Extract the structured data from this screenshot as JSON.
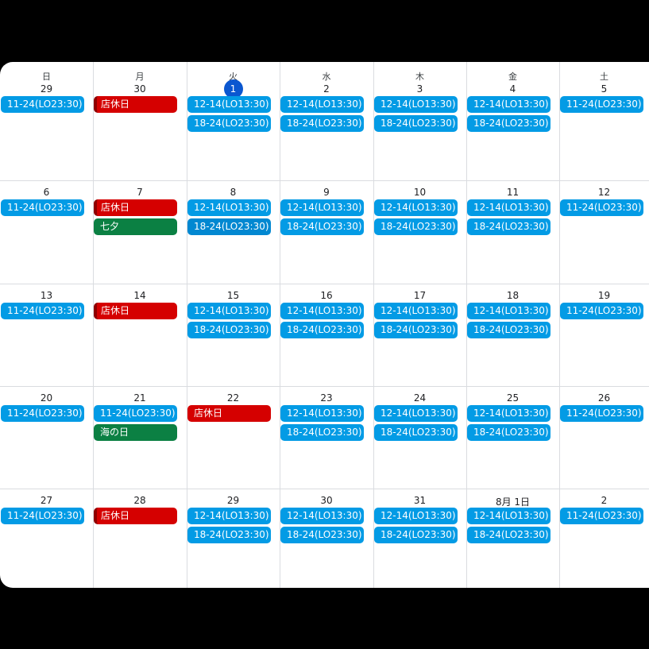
{
  "weekdays": [
    "日",
    "月",
    "火",
    "水",
    "木",
    "金",
    "土"
  ],
  "weeks": [
    {
      "days": [
        {
          "date": "29",
          "events": [
            {
              "text": "11-24(LO23:30)",
              "color": "#039be5"
            }
          ]
        },
        {
          "date": "30",
          "events": [
            {
              "text": "店休日",
              "color": "#d50000"
            }
          ]
        },
        {
          "date": "1",
          "events": [
            {
              "text": "12-14(LO13:30)",
              "color": "#039be5"
            },
            {
              "text": "18-24(LO23:30)",
              "color": "#039be5"
            }
          ]
        },
        {
          "date": "2",
          "events": [
            {
              "text": "12-14(LO13:30)",
              "color": "#039be5"
            },
            {
              "text": "18-24(LO23:30)",
              "color": "#039be5"
            }
          ]
        },
        {
          "date": "3",
          "events": [
            {
              "text": "12-14(LO13:30)",
              "color": "#039be5"
            },
            {
              "text": "18-24(LO23:30)",
              "color": "#039be5"
            }
          ]
        },
        {
          "date": "4",
          "events": [
            {
              "text": "12-14(LO13:30)",
              "color": "#039be5"
            },
            {
              "text": "18-24(LO23:30)",
              "color": "#039be5"
            }
          ]
        },
        {
          "date": "5",
          "events": [
            {
              "text": "11-24(LO23:30)",
              "color": "#039be5"
            }
          ]
        }
      ]
    },
    {
      "days": [
        {
          "date": "6",
          "events": [
            {
              "text": "11-24(LO23:30)",
              "color": "#039be5"
            }
          ]
        },
        {
          "date": "7",
          "events": [
            {
              "text": "店休日",
              "color": "#d50000"
            },
            {
              "text": "七夕",
              "color": "#0b8043"
            }
          ]
        },
        {
          "date": "8",
          "events": [
            {
              "text": "12-14(LO13:30)",
              "color": "#039be5"
            },
            {
              "text": "18-24(LO23:30)",
              "color": "#0288d1"
            }
          ]
        },
        {
          "date": "9",
          "events": [
            {
              "text": "12-14(LO13:30)",
              "color": "#039be5"
            },
            {
              "text": "18-24(LO23:30)",
              "color": "#039be5"
            }
          ]
        },
        {
          "date": "10",
          "events": [
            {
              "text": "12-14(LO13:30)",
              "color": "#039be5"
            },
            {
              "text": "18-24(LO23:30)",
              "color": "#039be5"
            }
          ]
        },
        {
          "date": "11",
          "events": [
            {
              "text": "12-14(LO13:30)",
              "color": "#039be5"
            },
            {
              "text": "18-24(LO23:30)",
              "color": "#039be5"
            }
          ]
        },
        {
          "date": "12",
          "events": [
            {
              "text": "11-24(LO23:30)",
              "color": "#039be5"
            }
          ]
        }
      ]
    },
    {
      "days": [
        {
          "date": "13",
          "events": [
            {
              "text": "11-24(LO23:30)",
              "color": "#039be5"
            }
          ]
        },
        {
          "date": "14",
          "events": [
            {
              "text": "店休日",
              "color": "#d50000"
            }
          ]
        },
        {
          "date": "15",
          "events": [
            {
              "text": "12-14(LO13:30)",
              "color": "#039be5"
            },
            {
              "text": "18-24(LO23:30)",
              "color": "#039be5"
            }
          ]
        },
        {
          "date": "16",
          "events": [
            {
              "text": "12-14(LO13:30)",
              "color": "#039be5"
            },
            {
              "text": "18-24(LO23:30)",
              "color": "#039be5"
            }
          ]
        },
        {
          "date": "17",
          "events": [
            {
              "text": "12-14(LO13:30)",
              "color": "#039be5"
            },
            {
              "text": "18-24(LO23:30)",
              "color": "#039be5"
            }
          ]
        },
        {
          "date": "18",
          "events": [
            {
              "text": "12-14(LO13:30)",
              "color": "#039be5"
            },
            {
              "text": "18-24(LO23:30)",
              "color": "#039be5"
            }
          ]
        },
        {
          "date": "19",
          "events": [
            {
              "text": "11-24(LO23:30)",
              "color": "#039be5"
            }
          ]
        }
      ]
    },
    {
      "days": [
        {
          "date": "20",
          "events": [
            {
              "text": "11-24(LO23:30)",
              "color": "#039be5"
            }
          ]
        },
        {
          "date": "21",
          "events": [
            {
              "text": "11-24(LO23:30)",
              "color": "#039be5"
            },
            {
              "text": "海の日",
              "color": "#0b8043"
            }
          ]
        },
        {
          "date": "22",
          "events": [
            {
              "text": "店休日",
              "color": "#d50000"
            }
          ]
        },
        {
          "date": "23",
          "events": [
            {
              "text": "12-14(LO13:30)",
              "color": "#039be5"
            },
            {
              "text": "18-24(LO23:30)",
              "color": "#039be5"
            }
          ]
        },
        {
          "date": "24",
          "events": [
            {
              "text": "12-14(LO13:30)",
              "color": "#039be5"
            },
            {
              "text": "18-24(LO23:30)",
              "color": "#039be5"
            }
          ]
        },
        {
          "date": "25",
          "events": [
            {
              "text": "12-14(LO13:30)",
              "color": "#039be5"
            },
            {
              "text": "18-24(LO23:30)",
              "color": "#039be5"
            }
          ]
        },
        {
          "date": "26",
          "events": [
            {
              "text": "11-24(LO23:30)",
              "color": "#039be5"
            }
          ]
        }
      ]
    },
    {
      "days": [
        {
          "date": "27",
          "events": [
            {
              "text": "11-24(LO23:30)",
              "color": "#039be5"
            }
          ]
        },
        {
          "date": "28",
          "events": [
            {
              "text": "店休日",
              "color": "#d50000"
            }
          ]
        },
        {
          "date": "29",
          "events": [
            {
              "text": "12-14(LO13:30)",
              "color": "#039be5"
            },
            {
              "text": "18-24(LO23:30)",
              "color": "#039be5"
            }
          ]
        },
        {
          "date": "30",
          "events": [
            {
              "text": "12-14(LO13:30)",
              "color": "#039be5"
            },
            {
              "text": "18-24(LO23:30)",
              "color": "#039be5"
            }
          ]
        },
        {
          "date": "31",
          "events": [
            {
              "text": "12-14(LO13:30)",
              "color": "#039be5"
            },
            {
              "text": "18-24(LO23:30)",
              "color": "#039be5"
            }
          ]
        },
        {
          "date": "8月 1日",
          "events": [
            {
              "text": "12-14(LO13:30)",
              "color": "#039be5"
            },
            {
              "text": "18-24(LO23:30)",
              "color": "#039be5"
            }
          ]
        },
        {
          "date": "2",
          "events": [
            {
              "text": "11-24(LO23:30)",
              "color": "#039be5"
            }
          ]
        }
      ]
    }
  ]
}
